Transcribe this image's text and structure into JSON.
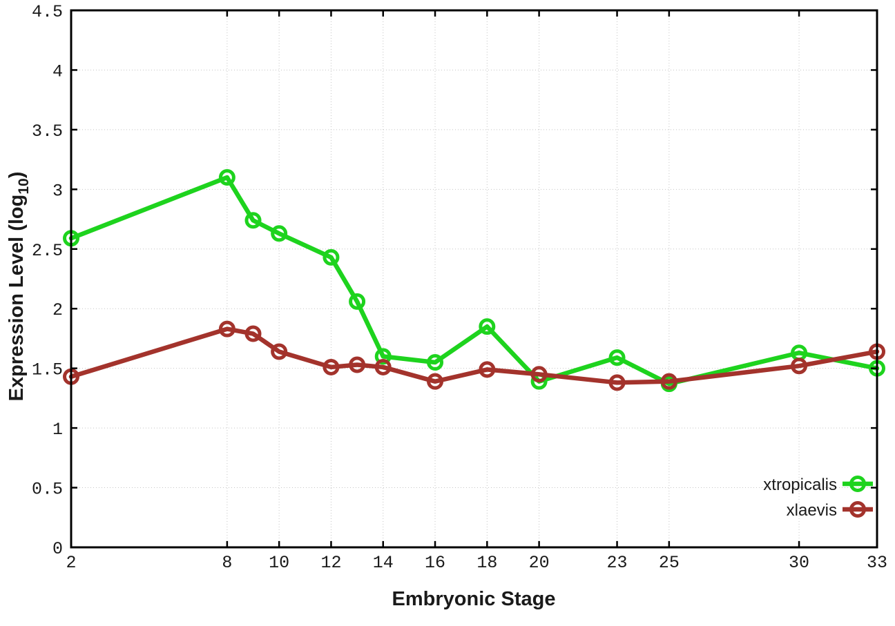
{
  "chart_data": {
    "type": "line",
    "title": "",
    "xlabel": "Embryonic Stage",
    "ylabel": "Expression Level (log10)",
    "ylabel_parts": {
      "main": "Expression Level (log",
      "sub": "10",
      "close": ")"
    },
    "xlim": [
      2,
      33
    ],
    "ylim": [
      0,
      4.5
    ],
    "x_ticks": [
      2,
      8,
      10,
      12,
      14,
      16,
      18,
      20,
      23,
      25,
      30,
      33
    ],
    "y_ticks": [
      0,
      0.5,
      1,
      1.5,
      2,
      2.5,
      3,
      3.5,
      4,
      4.5
    ],
    "y_tick_labels": [
      "0",
      "0.5",
      "1",
      "1.5",
      "2",
      "2.5",
      "3",
      "3.5",
      "4",
      "4.5"
    ],
    "grid": true,
    "legend_position": "inside-bottom-right",
    "marker": "open-circle",
    "categories_note": "shared x values for both series",
    "x": [
      2,
      8,
      9,
      10,
      12,
      13,
      14,
      16,
      18,
      20,
      23,
      25,
      30,
      33
    ],
    "series": [
      {
        "name": "xtropicalis",
        "color": "#1ed31e",
        "values": [
          2.59,
          3.1,
          2.74,
          2.63,
          2.43,
          2.06,
          1.6,
          1.55,
          1.85,
          1.39,
          1.59,
          1.37,
          1.63,
          1.5
        ]
      },
      {
        "name": "xlaevis",
        "color": "#a3332c",
        "values": [
          1.43,
          1.83,
          1.79,
          1.64,
          1.51,
          1.53,
          1.51,
          1.39,
          1.49,
          1.45,
          1.38,
          1.39,
          1.52,
          1.64
        ]
      }
    ]
  },
  "colors": {
    "background": "#ffffff",
    "grid": "#c4c4c4",
    "axis": "#000000",
    "text": "#1a1a1a"
  }
}
